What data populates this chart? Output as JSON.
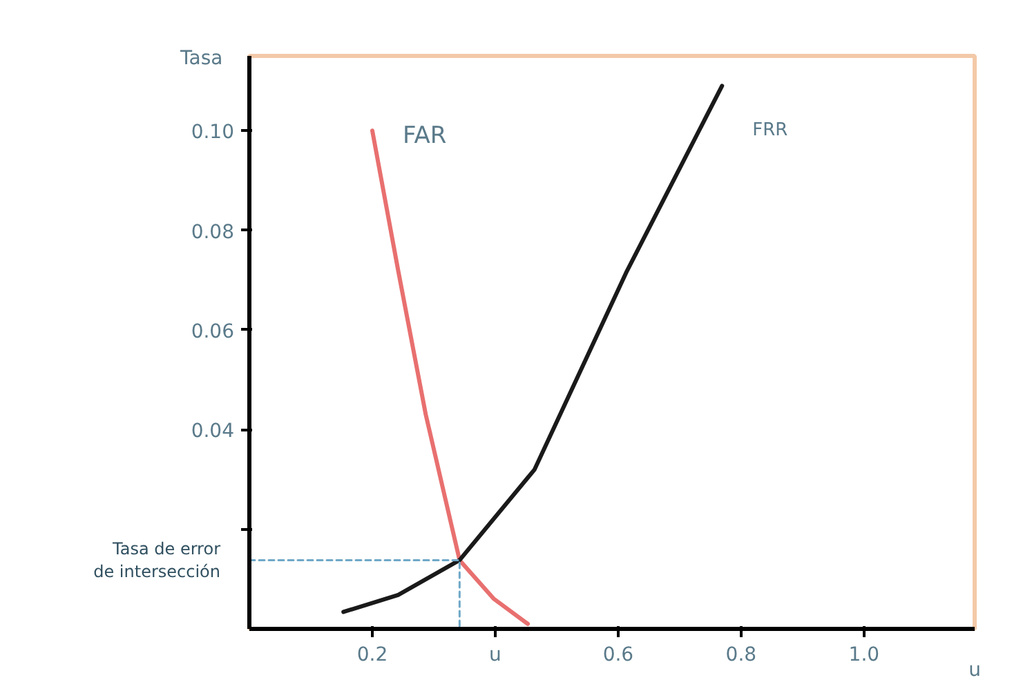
{
  "chart_data": {
    "type": "line",
    "xlabel": "u",
    "ylabel": "Tasa",
    "xlim": [
      0,
      1.18
    ],
    "ylim": [
      0,
      0.115
    ],
    "xticks": [
      0.2,
      {
        "value": 0.4,
        "label": "u"
      },
      0.6,
      0.8,
      {
        "value": 1.0,
        "label": "1.0"
      }
    ],
    "yticks": [
      {
        "value": 0.02,
        "label": null
      },
      0.04,
      0.06,
      0.08,
      {
        "value": 0.1,
        "label": "0.10"
      }
    ],
    "grid": false,
    "marker": "none",
    "line_style": "solid",
    "series": [
      {
        "name": "FAR",
        "color": "#e8706f",
        "x": [
          0.2,
          0.242,
          0.287,
          0.342,
          0.398,
          0.453
        ],
        "values": [
          0.1,
          0.072,
          0.043,
          0.0138,
          0.006,
          0.001
        ]
      },
      {
        "name": "FRR",
        "color": "#1a1a1a",
        "x": [
          0.153,
          0.242,
          0.342,
          0.464,
          0.613,
          0.769
        ],
        "values": [
          0.0034,
          0.0068,
          0.0138,
          0.032,
          0.0715,
          0.109
        ]
      },
      {
        "color": "#6fa8c8",
        "line_style": "dashed",
        "x": [
          0,
          0.342,
          0.342
        ],
        "values": [
          0.0138,
          0.0138,
          0
        ]
      }
    ],
    "annotations": [
      "Tasa de error\nde intersección"
    ]
  }
}
